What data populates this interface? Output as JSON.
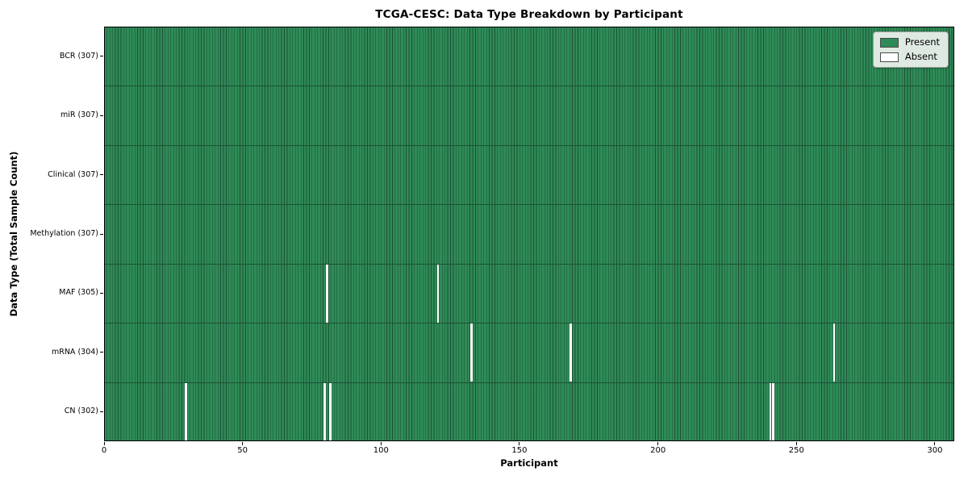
{
  "chart_data": {
    "type": "heatmap",
    "title": "TCGA-CESC: Data Type Breakdown by Participant",
    "xlabel": "Participant",
    "ylabel": "Data Type (Total Sample Count)",
    "n_participants": 307,
    "xlim": [
      0,
      307
    ],
    "x_ticks": [
      0,
      50,
      100,
      150,
      200,
      250,
      300
    ],
    "grid": false,
    "legend_position": "upper right",
    "legend": [
      {
        "label": "Present",
        "color": "#2e8b57"
      },
      {
        "label": "Absent",
        "color": "#ffffff"
      }
    ],
    "rows": [
      {
        "label": "BCR (307)",
        "data_type": "BCR",
        "present_count": 307,
        "absent_participants": []
      },
      {
        "label": "miR (307)",
        "data_type": "miR",
        "present_count": 307,
        "absent_participants": []
      },
      {
        "label": "Clinical (307)",
        "data_type": "Clinical",
        "present_count": 307,
        "absent_participants": []
      },
      {
        "label": "Methylation (307)",
        "data_type": "Methylation",
        "present_count": 307,
        "absent_participants": []
      },
      {
        "label": "MAF (305)",
        "data_type": "MAF",
        "present_count": 305,
        "absent_participants": [
          80,
          120
        ]
      },
      {
        "label": "mRNA (304)",
        "data_type": "mRNA",
        "present_count": 304,
        "absent_participants": [
          132,
          168,
          263
        ]
      },
      {
        "label": "CN (302)",
        "data_type": "CN",
        "present_count": 302,
        "absent_participants": [
          29,
          79,
          81,
          240,
          241
        ]
      }
    ],
    "colors": {
      "present": "#2e8b57",
      "absent": "#ffffff",
      "cell_edge": "#1d5034",
      "frame": "#000000",
      "legend_bg": "#eef3ee",
      "legend_border": "#9c9c9c",
      "text": "#000000"
    }
  }
}
